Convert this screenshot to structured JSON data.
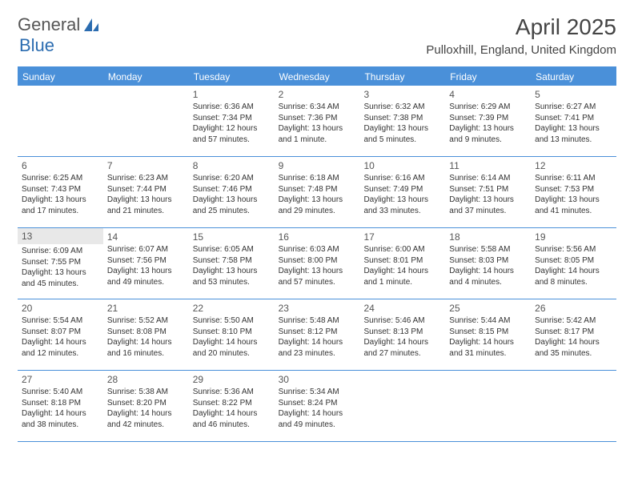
{
  "logo": {
    "text1": "General",
    "text2": "Blue"
  },
  "title": "April 2025",
  "location": "Pulloxhill, England, United Kingdom",
  "colors": {
    "header_bg": "#4a90d9",
    "header_text": "#ffffff",
    "border": "#4a90d9",
    "text": "#333333",
    "logo_blue": "#2b6cb0",
    "today_bg": "#e8e8e8"
  },
  "day_headers": [
    "Sunday",
    "Monday",
    "Tuesday",
    "Wednesday",
    "Thursday",
    "Friday",
    "Saturday"
  ],
  "weeks": [
    [
      null,
      null,
      {
        "n": "1",
        "sr": "6:36 AM",
        "ss": "7:34 PM",
        "dl": "12 hours and 57 minutes."
      },
      {
        "n": "2",
        "sr": "6:34 AM",
        "ss": "7:36 PM",
        "dl": "13 hours and 1 minute."
      },
      {
        "n": "3",
        "sr": "6:32 AM",
        "ss": "7:38 PM",
        "dl": "13 hours and 5 minutes."
      },
      {
        "n": "4",
        "sr": "6:29 AM",
        "ss": "7:39 PM",
        "dl": "13 hours and 9 minutes."
      },
      {
        "n": "5",
        "sr": "6:27 AM",
        "ss": "7:41 PM",
        "dl": "13 hours and 13 minutes."
      }
    ],
    [
      {
        "n": "6",
        "sr": "6:25 AM",
        "ss": "7:43 PM",
        "dl": "13 hours and 17 minutes."
      },
      {
        "n": "7",
        "sr": "6:23 AM",
        "ss": "7:44 PM",
        "dl": "13 hours and 21 minutes."
      },
      {
        "n": "8",
        "sr": "6:20 AM",
        "ss": "7:46 PM",
        "dl": "13 hours and 25 minutes."
      },
      {
        "n": "9",
        "sr": "6:18 AM",
        "ss": "7:48 PM",
        "dl": "13 hours and 29 minutes."
      },
      {
        "n": "10",
        "sr": "6:16 AM",
        "ss": "7:49 PM",
        "dl": "13 hours and 33 minutes."
      },
      {
        "n": "11",
        "sr": "6:14 AM",
        "ss": "7:51 PM",
        "dl": "13 hours and 37 minutes."
      },
      {
        "n": "12",
        "sr": "6:11 AM",
        "ss": "7:53 PM",
        "dl": "13 hours and 41 minutes."
      }
    ],
    [
      {
        "n": "13",
        "sr": "6:09 AM",
        "ss": "7:55 PM",
        "dl": "13 hours and 45 minutes.",
        "today": true
      },
      {
        "n": "14",
        "sr": "6:07 AM",
        "ss": "7:56 PM",
        "dl": "13 hours and 49 minutes."
      },
      {
        "n": "15",
        "sr": "6:05 AM",
        "ss": "7:58 PM",
        "dl": "13 hours and 53 minutes."
      },
      {
        "n": "16",
        "sr": "6:03 AM",
        "ss": "8:00 PM",
        "dl": "13 hours and 57 minutes."
      },
      {
        "n": "17",
        "sr": "6:00 AM",
        "ss": "8:01 PM",
        "dl": "14 hours and 1 minute."
      },
      {
        "n": "18",
        "sr": "5:58 AM",
        "ss": "8:03 PM",
        "dl": "14 hours and 4 minutes."
      },
      {
        "n": "19",
        "sr": "5:56 AM",
        "ss": "8:05 PM",
        "dl": "14 hours and 8 minutes."
      }
    ],
    [
      {
        "n": "20",
        "sr": "5:54 AM",
        "ss": "8:07 PM",
        "dl": "14 hours and 12 minutes."
      },
      {
        "n": "21",
        "sr": "5:52 AM",
        "ss": "8:08 PM",
        "dl": "14 hours and 16 minutes."
      },
      {
        "n": "22",
        "sr": "5:50 AM",
        "ss": "8:10 PM",
        "dl": "14 hours and 20 minutes."
      },
      {
        "n": "23",
        "sr": "5:48 AM",
        "ss": "8:12 PM",
        "dl": "14 hours and 23 minutes."
      },
      {
        "n": "24",
        "sr": "5:46 AM",
        "ss": "8:13 PM",
        "dl": "14 hours and 27 minutes."
      },
      {
        "n": "25",
        "sr": "5:44 AM",
        "ss": "8:15 PM",
        "dl": "14 hours and 31 minutes."
      },
      {
        "n": "26",
        "sr": "5:42 AM",
        "ss": "8:17 PM",
        "dl": "14 hours and 35 minutes."
      }
    ],
    [
      {
        "n": "27",
        "sr": "5:40 AM",
        "ss": "8:18 PM",
        "dl": "14 hours and 38 minutes."
      },
      {
        "n": "28",
        "sr": "5:38 AM",
        "ss": "8:20 PM",
        "dl": "14 hours and 42 minutes."
      },
      {
        "n": "29",
        "sr": "5:36 AM",
        "ss": "8:22 PM",
        "dl": "14 hours and 46 minutes."
      },
      {
        "n": "30",
        "sr": "5:34 AM",
        "ss": "8:24 PM",
        "dl": "14 hours and 49 minutes."
      },
      null,
      null,
      null
    ]
  ],
  "labels": {
    "sunrise": "Sunrise: ",
    "sunset": "Sunset: ",
    "daylight": "Daylight: "
  }
}
